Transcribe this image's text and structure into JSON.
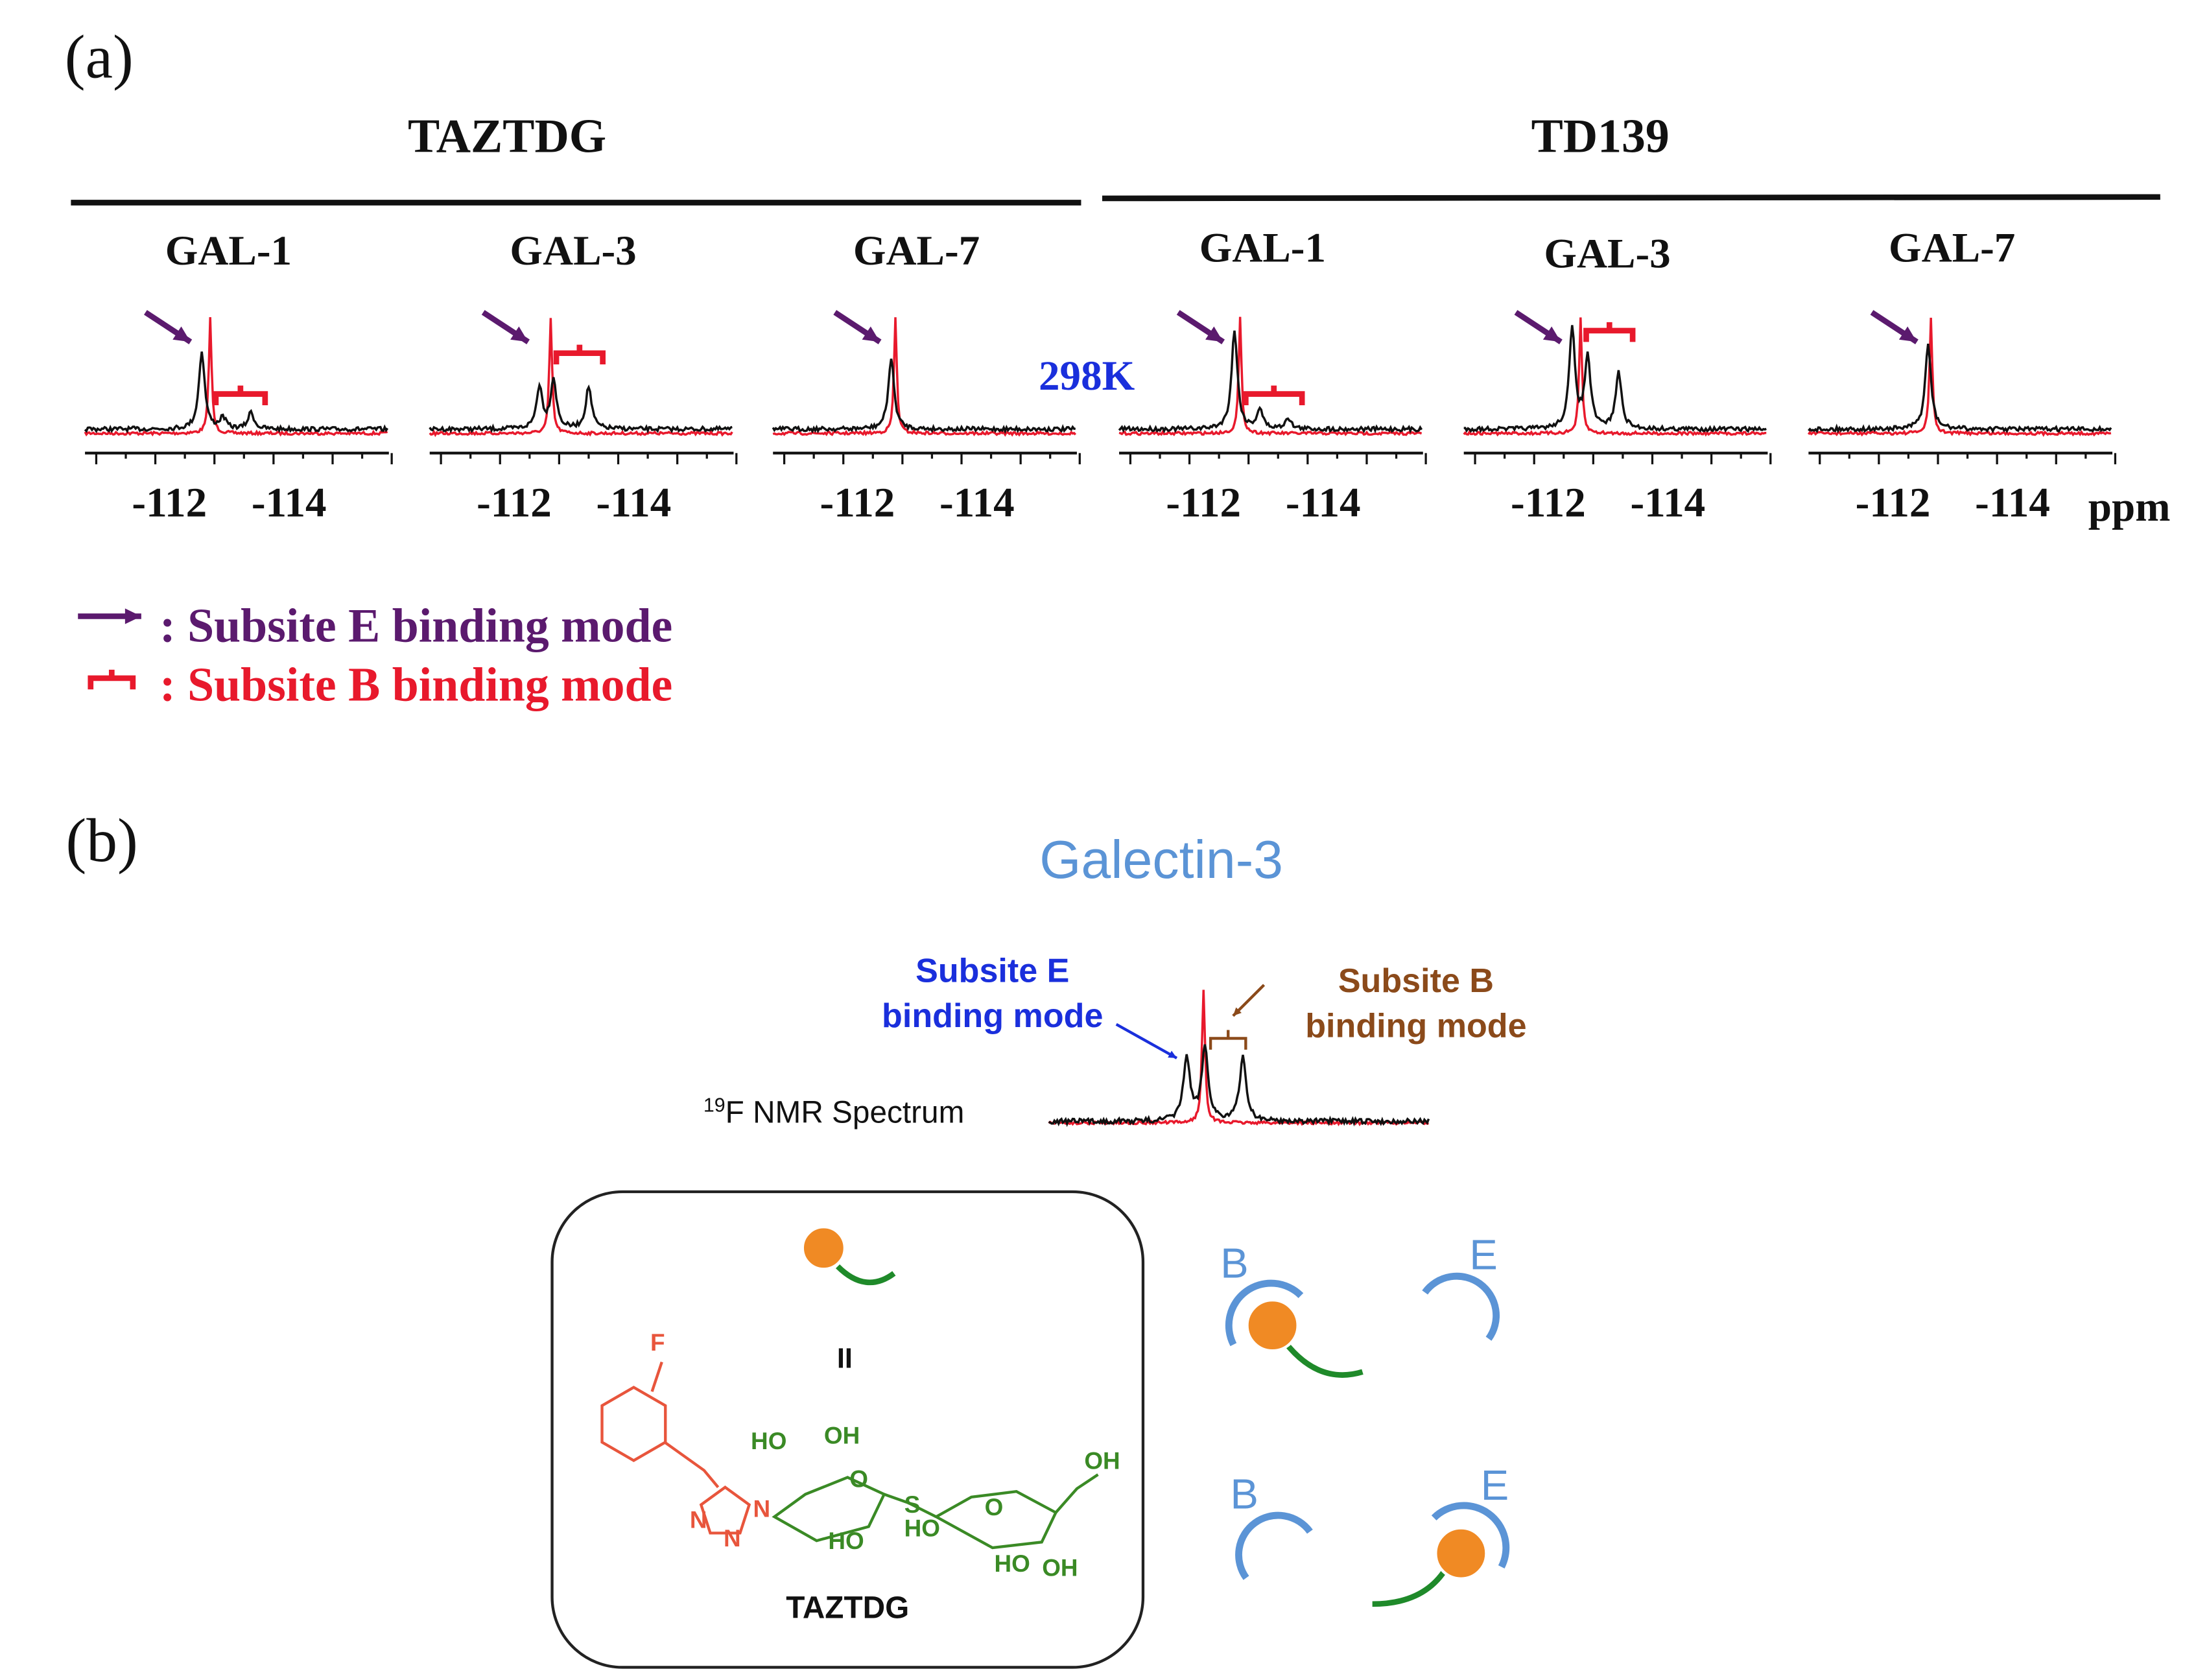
{
  "panel_a": {
    "label": "(a)",
    "groups": [
      {
        "name": "TAZTDG",
        "spectra": [
          {
            "title": "GAL-1",
            "ticks": [
              "-112",
              "-114"
            ]
          },
          {
            "title": "GAL-3",
            "ticks": [
              "-112",
              "-114"
            ]
          },
          {
            "title": "GAL-7",
            "ticks": [
              "-112",
              "-114"
            ]
          }
        ]
      },
      {
        "name": "TD139",
        "spectra": [
          {
            "title": "GAL-1",
            "ticks": [
              "-112",
              "-114"
            ]
          },
          {
            "title": "GAL-3",
            "ticks": [
              "-112",
              "-114"
            ]
          },
          {
            "title": "GAL-7",
            "ticks": [
              "-112",
              "-114"
            ]
          }
        ]
      }
    ],
    "temperature": "298K",
    "unit": "ppm",
    "legend": [
      ": Subsite E binding mode",
      ": Subsite B binding mode"
    ]
  },
  "panel_b": {
    "label": "(b)",
    "title": "Galectin-3",
    "subsite_e": [
      "Subsite E",
      "binding mode"
    ],
    "subsite_b": [
      "Subsite B",
      "binding mode"
    ],
    "spectrum_label": {
      "sup": "19",
      "text": "F NMR Spectrum"
    },
    "compound_numeral": "II",
    "compound_name": "TAZTDG",
    "atoms": [
      "F",
      "HO",
      "OH",
      "O",
      "S",
      "OH",
      "O",
      "N",
      "N",
      "N",
      "HO",
      "HO",
      "HO",
      "OH"
    ],
    "sites": [
      "B",
      "E",
      "B",
      "E"
    ]
  }
}
